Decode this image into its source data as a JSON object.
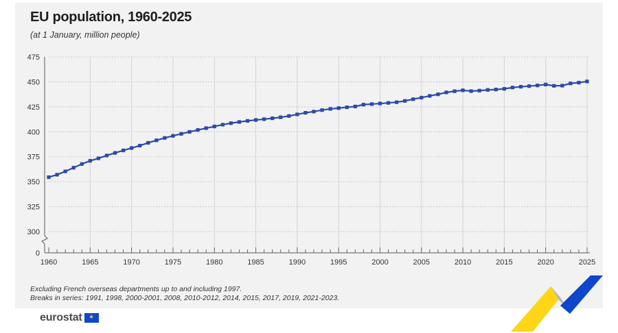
{
  "header": {
    "title": "EU population, 1960-2025",
    "subtitle": "(at 1 January, million people)"
  },
  "notes": [
    "Excluding French overseas departments up to and including 1997.",
    "Breaks in series: 1991, 1998, 2000-2001, 2008, 2010-2012, 2014, 2015, 2017, 2019, 2021-2023."
  ],
  "logo": {
    "text": "eurostat",
    "flag_icon": "eu-flag-icon"
  },
  "colors": {
    "line": "#2c4aa6",
    "panel": "#f2f2f2",
    "ribbon_yellow": "#ffd617",
    "ribbon_blue": "#0e47cb"
  },
  "chart_data": {
    "type": "line",
    "title": "EU population, 1960-2025",
    "subtitle": "(at 1 January, million people)",
    "xlabel": "",
    "ylabel": "",
    "xlim": [
      1960,
      2025
    ],
    "ylim": [
      300,
      475
    ],
    "axis_break": "between 0 and 300",
    "yticks": [
      0,
      300,
      325,
      350,
      375,
      400,
      425,
      450,
      475
    ],
    "xticks": [
      1960,
      1965,
      1970,
      1975,
      1980,
      1985,
      1990,
      1995,
      2000,
      2005,
      2010,
      2015,
      2020,
      2025
    ],
    "grid": true,
    "legend": "none",
    "series": [
      {
        "x": [
          1960,
          1961,
          1962,
          1963,
          1964,
          1965,
          1966,
          1967,
          1968,
          1969,
          1970,
          1971,
          1972,
          1973,
          1974,
          1975,
          1976,
          1977,
          1978,
          1979,
          1980,
          1981,
          1982,
          1983,
          1984,
          1985,
          1986,
          1987,
          1988,
          1989,
          1990,
          1991,
          1992,
          1993,
          1994,
          1995,
          1996,
          1997,
          1998,
          1999,
          2000,
          2001,
          2002,
          2003,
          2004,
          2005,
          2006,
          2007,
          2008,
          2009,
          2010,
          2011,
          2012,
          2013,
          2014,
          2015,
          2016,
          2017,
          2018,
          2019,
          2020,
          2021,
          2022,
          2023,
          2024,
          2025
        ],
        "values": [
          354.5,
          357.0,
          360.3,
          364.0,
          367.7,
          370.9,
          373.4,
          376.2,
          378.8,
          381.3,
          383.7,
          386.1,
          388.9,
          391.4,
          393.8,
          395.9,
          397.9,
          399.9,
          401.8,
          403.6,
          405.3,
          407.1,
          408.6,
          409.8,
          410.9,
          411.8,
          412.6,
          413.5,
          414.5,
          415.8,
          417.4,
          419.0,
          420.2,
          421.7,
          422.9,
          423.7,
          424.5,
          425.3,
          427.2,
          427.7,
          428.3,
          428.9,
          429.6,
          430.9,
          432.6,
          434.2,
          435.9,
          437.5,
          439.4,
          440.6,
          441.5,
          440.7,
          441.2,
          441.9,
          442.3,
          443.0,
          444.3,
          445.1,
          445.7,
          446.4,
          447.3,
          446.0,
          446.2,
          448.4,
          449.2,
          450.4
        ]
      }
    ]
  }
}
